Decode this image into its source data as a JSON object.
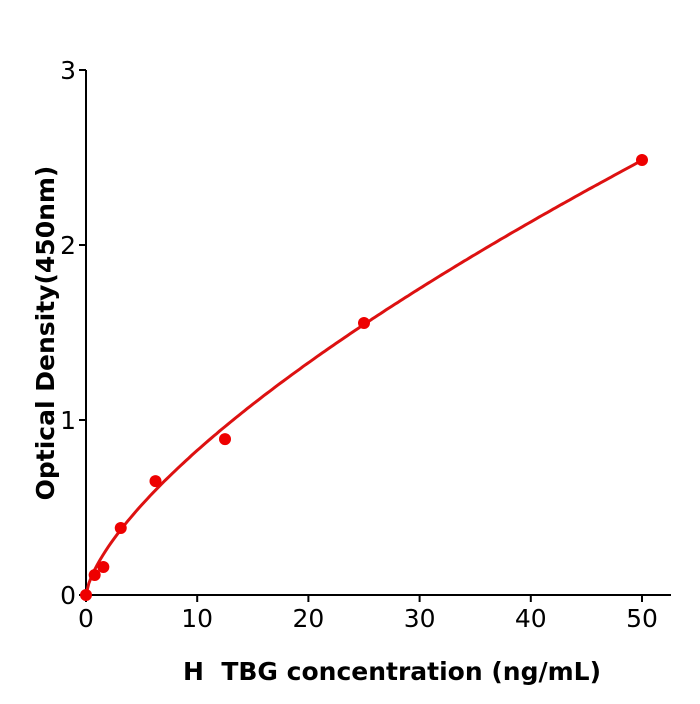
{
  "chart_data": {
    "type": "scatter",
    "title": "",
    "xlabel": "H  TBG concentration (ng/mL)",
    "ylabel": "Optical Density(450nm)",
    "xlim": [
      0,
      52.6
    ],
    "ylim": [
      0,
      3
    ],
    "xticks": [
      0,
      10,
      20,
      30,
      40,
      50
    ],
    "yticks": [
      0,
      1,
      2,
      3
    ],
    "grid": false,
    "series": [
      {
        "x": [
          0,
          0.78,
          1.56,
          3.125,
          6.25,
          12.5,
          25,
          50
        ],
        "y": [
          0,
          0.114,
          0.16,
          0.383,
          0.651,
          0.891,
          1.554,
          2.486
        ],
        "color": "#ee0000",
        "fit": "smooth curve",
        "fit_color": "#dd1111"
      }
    ]
  }
}
